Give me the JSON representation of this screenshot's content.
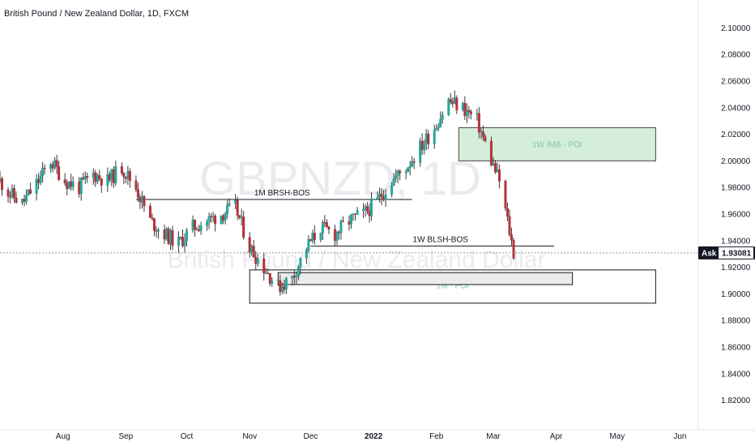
{
  "chart_data": {
    "type": "candlestick",
    "title": "British Pound / New Zealand Dollar, 1D, FXCM",
    "watermark": {
      "symbol": "GBPNZD, 1D",
      "name": "British Pound / New Zealand Dollar"
    },
    "ylim": [
      1.81,
      2.11
    ],
    "y_ticks": [
      "2.10000",
      "2.08000",
      "2.06000",
      "2.04000",
      "2.02000",
      "2.00000",
      "1.98000",
      "1.96000",
      "1.94000",
      "1.92000",
      "1.90000",
      "1.88000",
      "1.86000",
      "1.84000",
      "1.82000"
    ],
    "x_ticks": [
      {
        "label": "Aug",
        "date": "2021-08-01",
        "bold": false
      },
      {
        "label": "Sep",
        "date": "2021-09-01",
        "bold": false
      },
      {
        "label": "Oct",
        "date": "2021-10-01",
        "bold": false
      },
      {
        "label": "Nov",
        "date": "2021-11-01",
        "bold": false
      },
      {
        "label": "Dec",
        "date": "2021-12-01",
        "bold": false
      },
      {
        "label": "2022",
        "date": "2022-01-01",
        "bold": true
      },
      {
        "label": "Feb",
        "date": "2022-02-01",
        "bold": false
      },
      {
        "label": "Mar",
        "date": "2022-03-01",
        "bold": false
      },
      {
        "label": "Apr",
        "date": "2022-04-01",
        "bold": false
      },
      {
        "label": "May",
        "date": "2022-05-01",
        "bold": false
      },
      {
        "label": "Jun",
        "date": "2022-06-01",
        "bold": false
      }
    ],
    "x_range": [
      "2021-07-01",
      "2022-06-10"
    ],
    "price_path": [
      [
        "2021-07-01",
        1.985
      ],
      [
        "2021-07-06",
        1.975
      ],
      [
        "2021-07-12",
        1.968
      ],
      [
        "2021-07-20",
        1.985
      ],
      [
        "2021-07-26",
        2.0
      ],
      [
        "2021-08-02",
        1.985
      ],
      [
        "2021-08-09",
        1.98
      ],
      [
        "2021-08-16",
        1.99
      ],
      [
        "2021-08-23",
        1.985
      ],
      [
        "2021-08-30",
        1.995
      ],
      [
        "2021-09-06",
        1.98
      ],
      [
        "2021-09-13",
        1.955
      ],
      [
        "2021-09-20",
        1.945
      ],
      [
        "2021-09-27",
        1.938
      ],
      [
        "2021-10-04",
        1.95
      ],
      [
        "2021-10-11",
        1.955
      ],
      [
        "2021-10-18",
        1.96
      ],
      [
        "2021-10-25",
        1.965
      ],
      [
        "2021-11-01",
        1.935
      ],
      [
        "2021-11-08",
        1.92
      ],
      [
        "2021-11-15",
        1.905
      ],
      [
        "2021-11-22",
        1.912
      ],
      [
        "2021-11-29",
        1.935
      ],
      [
        "2021-12-06",
        1.95
      ],
      [
        "2021-12-13",
        1.945
      ],
      [
        "2021-12-20",
        1.955
      ],
      [
        "2021-12-27",
        1.96
      ],
      [
        "2022-01-03",
        1.97
      ],
      [
        "2022-01-10",
        1.985
      ],
      [
        "2022-01-17",
        1.995
      ],
      [
        "2022-01-24",
        2.01
      ],
      [
        "2022-01-31",
        2.025
      ],
      [
        "2022-02-07",
        2.045
      ],
      [
        "2022-02-14",
        2.04
      ],
      [
        "2022-02-21",
        2.03
      ],
      [
        "2022-02-28",
        2.0
      ],
      [
        "2022-03-04",
        1.985
      ],
      [
        "2022-03-08",
        1.955
      ],
      [
        "2022-03-11",
        1.931
      ]
    ],
    "last_price": {
      "label": "Ask",
      "value": "1.93081"
    },
    "annotations": [
      {
        "label": "1M BRSH-BOS",
        "type": "line",
        "y": 1.971,
        "x_start": "2021-09-06",
        "x_end": "2022-01-20"
      },
      {
        "label": "1W BLSH-BOS",
        "type": "line",
        "y": 1.936,
        "x_start": "2021-12-01",
        "x_end": "2022-03-31"
      }
    ],
    "zones": [
      {
        "label": "1W IMB - POI",
        "y_top": 2.025,
        "y_bottom": 2.0,
        "x_start": "2022-02-12",
        "x_end": "2022-05-20",
        "fill": "#d4eedb",
        "stroke": "#444444"
      },
      {
        "label": "1M - POI",
        "y_top": 1.918,
        "y_bottom": 1.893,
        "x_start": "2021-11-01",
        "x_end": "2022-05-20",
        "fill": "none",
        "stroke": "#131722"
      },
      {
        "label": "",
        "y_top": 1.916,
        "y_bottom": 1.907,
        "x_start": "2021-11-15",
        "x_end": "2022-04-09",
        "fill": "#ebebeb",
        "stroke": "#131722"
      }
    ],
    "colors": {
      "up": "#26a69a",
      "down": "#b3313b",
      "wick": "#3a3a3a",
      "ask_badge": "#131722",
      "price_line": "#9598a1"
    }
  }
}
